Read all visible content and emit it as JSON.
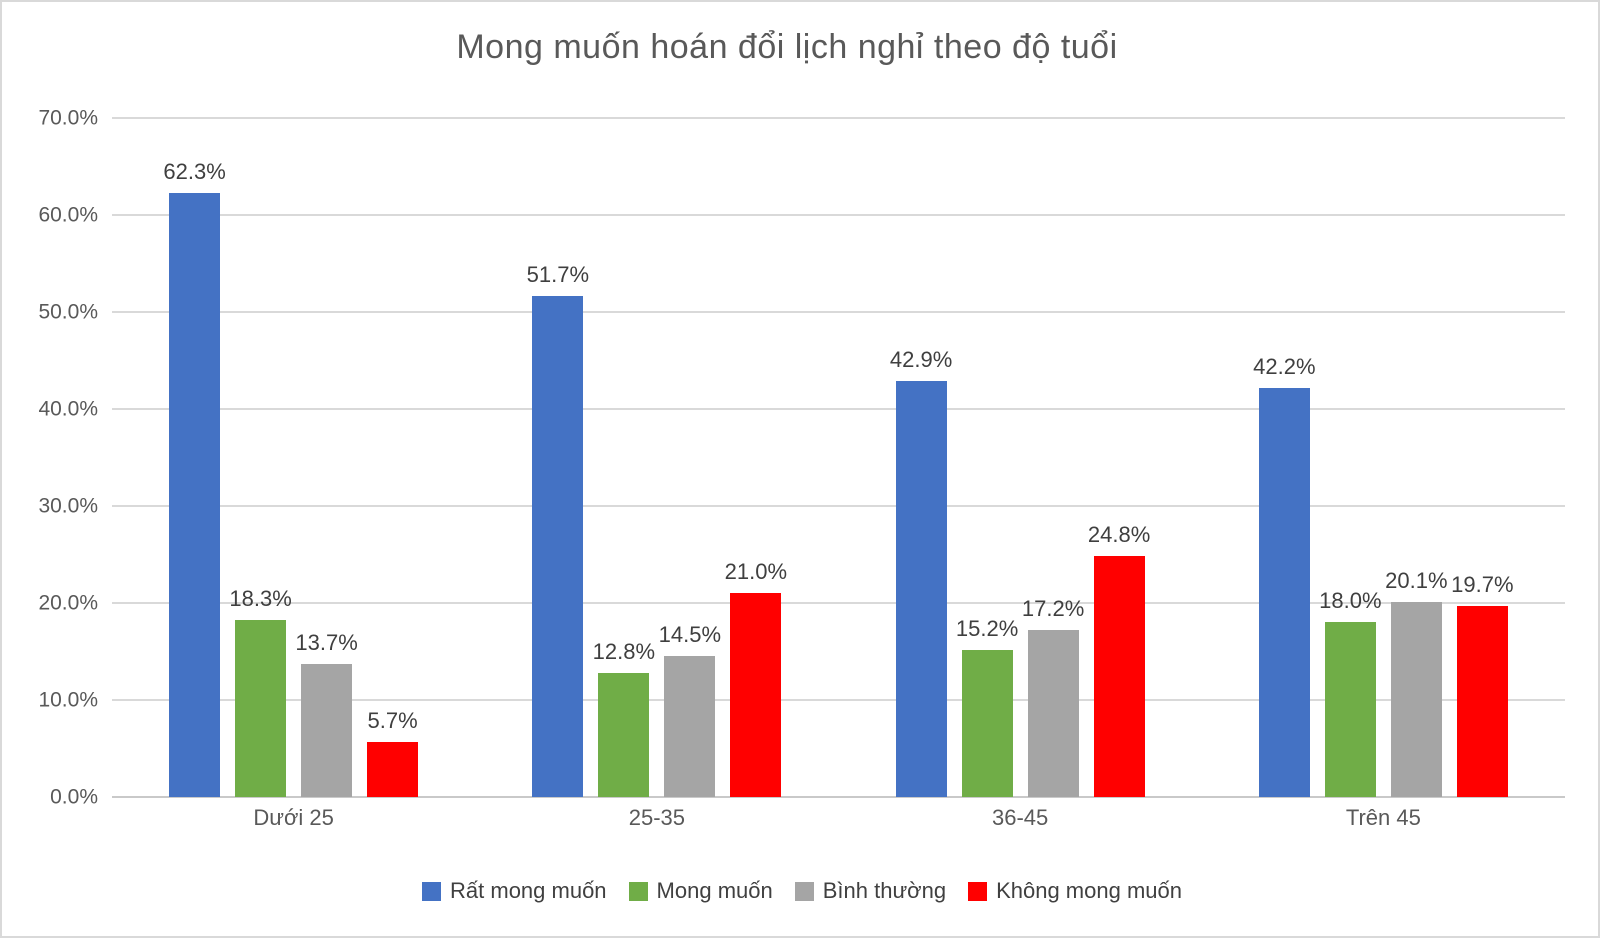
{
  "chart_data": {
    "type": "bar",
    "title": "Mong muốn hoán đổi lịch nghỉ theo độ tuổi",
    "categories": [
      "Dưới 25",
      "25-35",
      "36-45",
      "Trên 45"
    ],
    "series": [
      {
        "name": "Rất mong muốn",
        "color": "#4472C4",
        "values": [
          62.3,
          51.7,
          42.9,
          42.2
        ],
        "labels": [
          "62.3%",
          "51.7%",
          "42.9%",
          "42.2%"
        ]
      },
      {
        "name": "Mong muốn",
        "color": "#70AD47",
        "values": [
          18.3,
          12.8,
          15.2,
          18.0
        ],
        "labels": [
          "18.3%",
          "12.8%",
          "15.2%",
          "18.0%"
        ]
      },
      {
        "name": "Bình thường",
        "color": "#A5A5A5",
        "values": [
          13.7,
          14.5,
          17.2,
          20.1
        ],
        "labels": [
          "13.7%",
          "14.5%",
          "17.2%",
          "20.1%"
        ]
      },
      {
        "name": "Không mong muốn",
        "color": "#FF0000",
        "values": [
          5.7,
          21.0,
          24.8,
          19.7
        ],
        "labels": [
          "5.7%",
          "21.0%",
          "24.8%",
          "19.7%"
        ]
      }
    ],
    "y_axis": {
      "min": 0,
      "max": 70,
      "step": 10,
      "tick_labels": [
        "0.0%",
        "10.0%",
        "20.0%",
        "30.0%",
        "40.0%",
        "50.0%",
        "60.0%",
        "70.0%"
      ]
    },
    "ylim": [
      0,
      70
    ],
    "grid": true,
    "legend_position": "bottom",
    "style_colors": {
      "axis_text": "#595959",
      "data_label_text": "#3F3F3F",
      "gridline": "#D9D9D9",
      "frame_border": "#D9D9D9"
    }
  }
}
